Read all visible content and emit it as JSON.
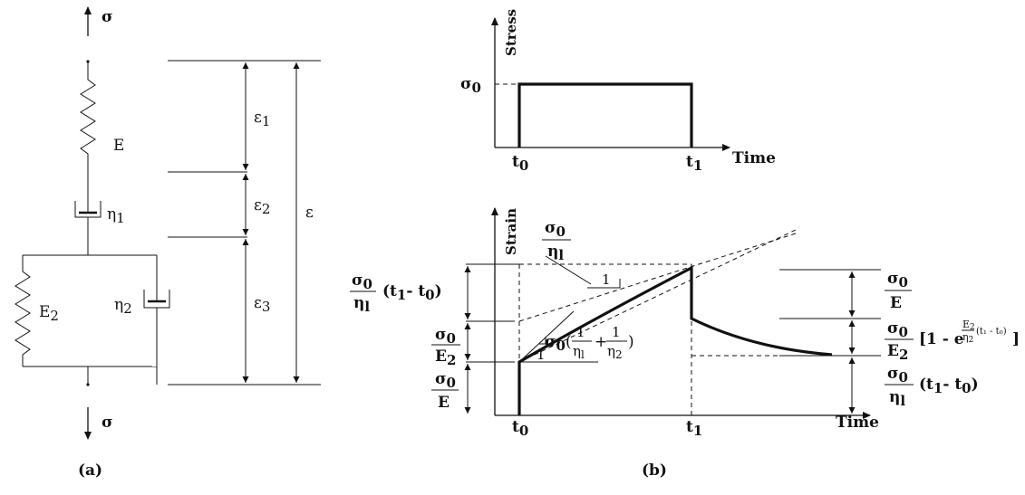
{
  "panel_a": {
    "caption": "(a)",
    "sigma_top": "σ",
    "sigma_bottom": "σ",
    "spring1": "E",
    "dashpot1": "η",
    "dashpot1_sub": "1",
    "spring2": "E",
    "spring2_sub": "2",
    "dashpot2": "η",
    "dashpot2_sub": "2",
    "eps1": "ε",
    "eps1_sub": "1",
    "eps2": "ε",
    "eps2_sub": "2",
    "eps3": "ε",
    "eps3_sub": "3",
    "eps_total": "ε"
  },
  "panel_b": {
    "caption": "(b)",
    "stress_chart": {
      "ylabel": "Stress",
      "xlabel": "Time",
      "level": "σ",
      "level_sub": "0",
      "t0": "t",
      "t0_sub": "0",
      "t1": "t",
      "t1_sub": "1"
    },
    "strain_chart": {
      "ylabel": "Strain",
      "xlabel": "Time",
      "t0": "t",
      "t0_sub": "0",
      "t1": "t",
      "t1_sub": "1",
      "slope_label_num": "σ",
      "slope_label_num_sub": "0",
      "slope_label_den": "η",
      "slope_label_den_sub": "l",
      "slope_one_a": "1",
      "slope_one_b": "1",
      "initial_slope_sigma": "σ",
      "initial_slope_sigma_sub": "0",
      "initial_slope_one1": "1",
      "initial_slope_eta1": "η",
      "initial_slope_eta1_sub": "l",
      "initial_slope_plus": "+",
      "initial_slope_one2": "1",
      "initial_slope_eta2": "η",
      "initial_slope_eta2_sub": "2",
      "left_viscous_num": "σ",
      "left_viscous_num_sub": "0",
      "left_viscous_den": "η",
      "left_viscous_den_sub": "l",
      "left_viscous_tail": "(t",
      "left_viscous_tail_sub1": "1",
      "left_viscous_tail_mid": "- t",
      "left_viscous_tail_sub0": "0",
      "left_viscous_tail_end": ")",
      "left_delayed_num": "σ",
      "left_delayed_num_sub": "0",
      "left_delayed_den": "E",
      "left_delayed_den_sub": "2",
      "left_instant_num": "σ",
      "left_instant_num_sub": "0",
      "left_instant_den": "E",
      "right_instant_num": "σ",
      "right_instant_num_sub": "0",
      "right_instant_den": "E",
      "right_delayed_num": "σ",
      "right_delayed_num_sub": "0",
      "right_delayed_den": "E",
      "right_delayed_den_sub": "2",
      "right_delayed_tail": "[1 - e",
      "right_delayed_exp_num": "E",
      "right_delayed_exp_num_sub": "2",
      "right_delayed_exp_den": "η",
      "right_delayed_exp_den_sub": "2",
      "right_delayed_exp_tail": "(t₁ - t₀)",
      "right_delayed_close": "]",
      "right_viscous_num": "σ",
      "right_viscous_num_sub": "0",
      "right_viscous_den": "η",
      "right_viscous_den_sub": "l",
      "right_viscous_tail": "(t",
      "right_viscous_tail_sub1": "1",
      "right_viscous_tail_mid": "- t",
      "right_viscous_tail_sub0": "0",
      "right_viscous_tail_end": ")"
    }
  }
}
